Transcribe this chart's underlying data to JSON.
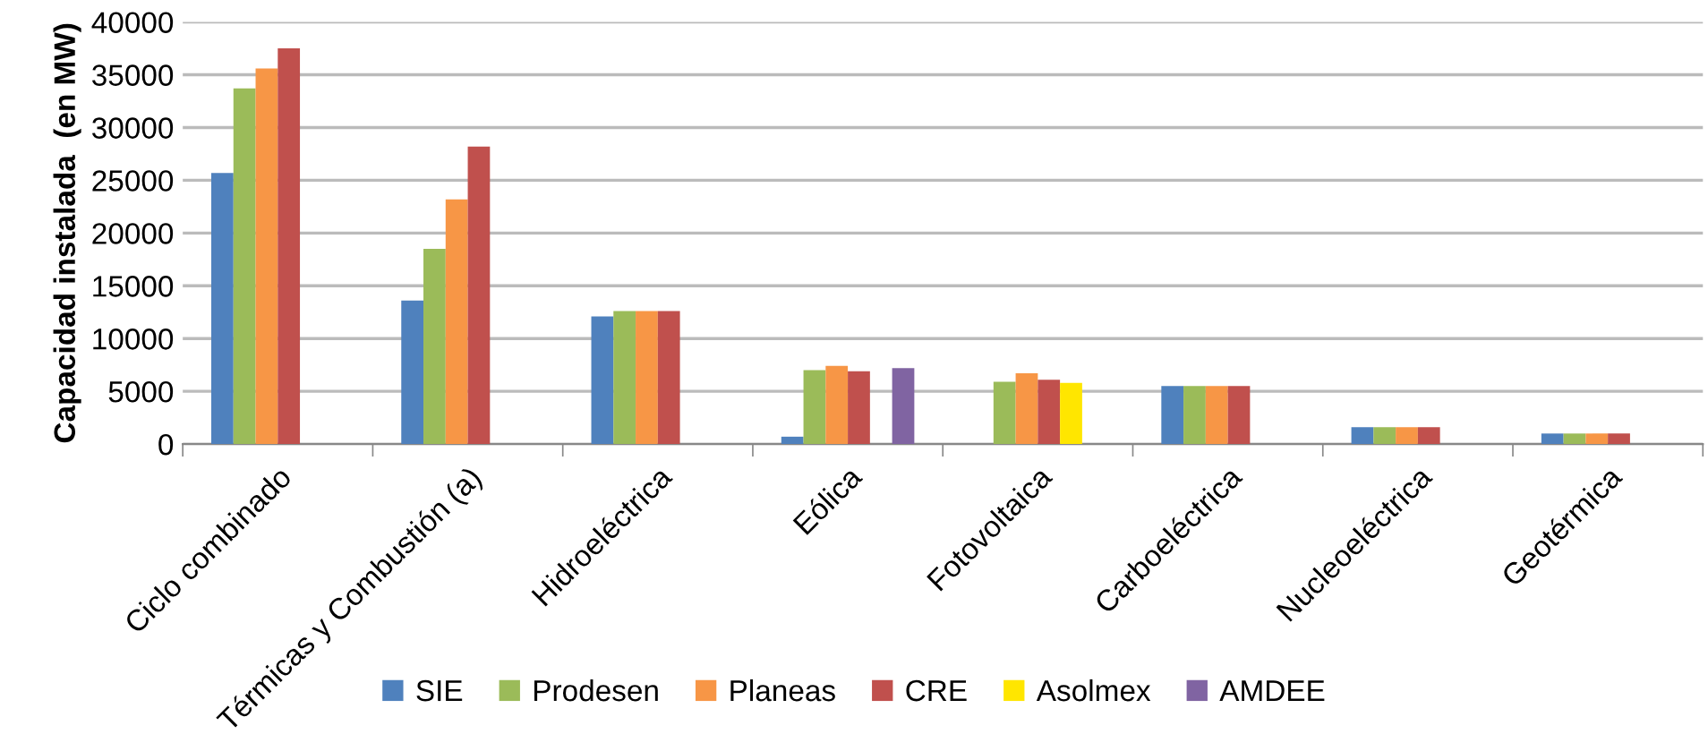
{
  "chart_data": {
    "type": "bar",
    "ylabel": "Capacidad instalada  (en MW)",
    "categories": [
      "Ciclo combinado",
      "Térmicas y Combustión (a)",
      "Hidroeléctrica",
      "Eólica",
      "Fotovoltaica",
      "Carboeléctrica",
      "Nucleoeléctrica",
      "Geotérmica"
    ],
    "series": [
      {
        "name": "SIE",
        "color": "#4f81bd",
        "values": [
          25700,
          13600,
          12100,
          700,
          null,
          5500,
          1600,
          1000
        ]
      },
      {
        "name": "Prodesen",
        "color": "#9bbb59",
        "values": [
          33700,
          18500,
          12600,
          7000,
          5900,
          5500,
          1600,
          1000
        ]
      },
      {
        "name": "Planeas",
        "color": "#f79646",
        "values": [
          35600,
          23200,
          12600,
          7400,
          6700,
          5500,
          1600,
          1000
        ]
      },
      {
        "name": "CRE",
        "color": "#c0504d",
        "values": [
          37500,
          28200,
          12600,
          6900,
          6100,
          5500,
          1600,
          1000
        ]
      },
      {
        "name": "Asolmex",
        "color": "#ffe600",
        "values": [
          null,
          null,
          null,
          null,
          5800,
          null,
          null,
          null
        ]
      },
      {
        "name": "AMDEE",
        "color": "#8064a2",
        "values": [
          null,
          null,
          null,
          7200,
          null,
          null,
          null,
          null
        ]
      }
    ],
    "ylim": [
      0,
      40000
    ],
    "yticks": [
      0,
      5000,
      10000,
      15000,
      20000,
      25000,
      30000,
      35000,
      40000
    ],
    "grid": "y",
    "legend": "bottom"
  }
}
